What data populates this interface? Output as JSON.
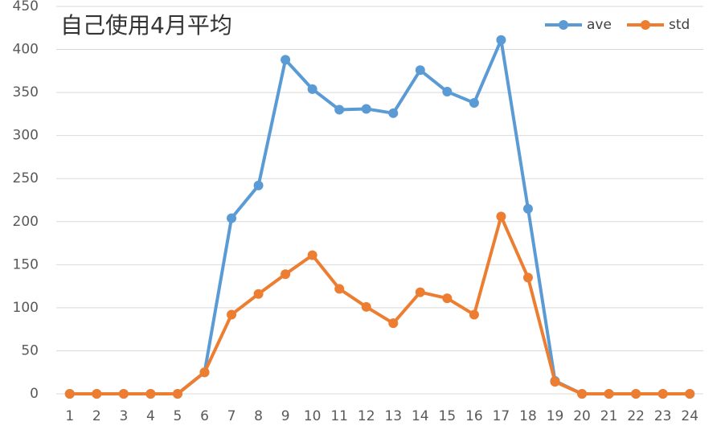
{
  "chart_data": {
    "type": "line",
    "title": "自己使用4月平均",
    "categories": [
      "1",
      "2",
      "3",
      "4",
      "5",
      "6",
      "7",
      "8",
      "9",
      "10",
      "11",
      "12",
      "13",
      "14",
      "15",
      "16",
      "17",
      "18",
      "19",
      "20",
      "21",
      "22",
      "23",
      "24"
    ],
    "series": [
      {
        "name": "ave",
        "color": "#5b9bd5",
        "values": [
          0,
          0,
          0,
          0,
          0,
          25,
          204,
          242,
          388,
          354,
          330,
          331,
          326,
          376,
          351,
          338,
          411,
          215,
          15,
          0,
          0,
          0,
          0,
          0
        ]
      },
      {
        "name": "std",
        "color": "#ed7d31",
        "values": [
          0,
          0,
          0,
          0,
          0,
          25,
          92,
          116,
          139,
          161,
          122,
          101,
          82,
          118,
          111,
          92,
          206,
          135,
          14,
          0,
          0,
          0,
          0,
          0
        ]
      }
    ],
    "ylim": [
      0,
      450
    ],
    "yticks": [
      0,
      50,
      100,
      150,
      200,
      250,
      300,
      350,
      400,
      450
    ],
    "grid": true,
    "legend": "top-right"
  }
}
